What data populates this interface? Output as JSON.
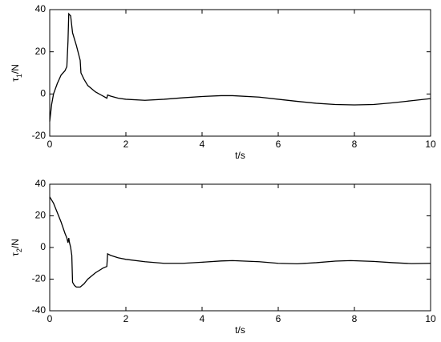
{
  "chart_data": [
    {
      "type": "line",
      "xlabel": "t/s",
      "ylabel": "τ1/N",
      "xlim": [
        0,
        10
      ],
      "ylim": [
        -20,
        40
      ],
      "xticks": [
        0,
        2,
        4,
        6,
        8,
        10
      ],
      "yticks": [
        -20,
        0,
        20,
        40
      ],
      "x": [
        0,
        0.05,
        0.1,
        0.2,
        0.3,
        0.4,
        0.45,
        0.48,
        0.5,
        0.55,
        0.6,
        0.7,
        0.8,
        0.82,
        0.9,
        1.0,
        1.2,
        1.4,
        1.5,
        1.52,
        1.6,
        1.8,
        2,
        2.5,
        3,
        3.5,
        4,
        4.5,
        4.8,
        5.5,
        6,
        6.5,
        7,
        7.5,
        8,
        8.5,
        9,
        9.5,
        10
      ],
      "series": [
        {
          "color": "#000000",
          "values": [
            -13,
            -5,
            0,
            5,
            9,
            11,
            13,
            25,
            38,
            37,
            29,
            23,
            16,
            10,
            7,
            4,
            1,
            -1,
            -2,
            -0.5,
            -1,
            -2,
            -2.5,
            -3,
            -2.5,
            -1.8,
            -1.2,
            -0.8,
            -0.8,
            -1.5,
            -2.5,
            -3.5,
            -4.4,
            -5,
            -5.2,
            -5,
            -4.2,
            -3.2,
            -2.2
          ]
        }
      ]
    },
    {
      "type": "line",
      "xlabel": "t/s",
      "ylabel": "τ2/N",
      "xlim": [
        0,
        10
      ],
      "ylim": [
        -40,
        40
      ],
      "xticks": [
        0,
        2,
        4,
        6,
        8,
        10
      ],
      "yticks": [
        -40,
        -20,
        0,
        20,
        40
      ],
      "x": [
        0,
        0.1,
        0.2,
        0.3,
        0.4,
        0.45,
        0.48,
        0.5,
        0.52,
        0.55,
        0.58,
        0.6,
        0.65,
        0.7,
        0.8,
        0.9,
        1.0,
        1.2,
        1.4,
        1.5,
        1.52,
        1.6,
        1.8,
        2,
        2.5,
        3,
        3.5,
        4,
        4.5,
        4.8,
        5.5,
        6,
        6.5,
        7,
        7.5,
        7.9,
        8.5,
        9,
        9.5,
        10
      ],
      "series": [
        {
          "color": "#000000",
          "values": [
            32,
            28,
            22,
            16,
            9,
            6,
            3,
            6,
            3,
            0,
            -5,
            -22,
            -24,
            -25,
            -25,
            -23,
            -20,
            -16,
            -13,
            -12,
            -4,
            -5,
            -6.5,
            -7.5,
            -9,
            -10,
            -10,
            -9.3,
            -8.5,
            -8.3,
            -9,
            -10,
            -10.3,
            -9.6,
            -8.6,
            -8.3,
            -8.8,
            -9.6,
            -10.2,
            -10
          ]
        }
      ]
    }
  ]
}
